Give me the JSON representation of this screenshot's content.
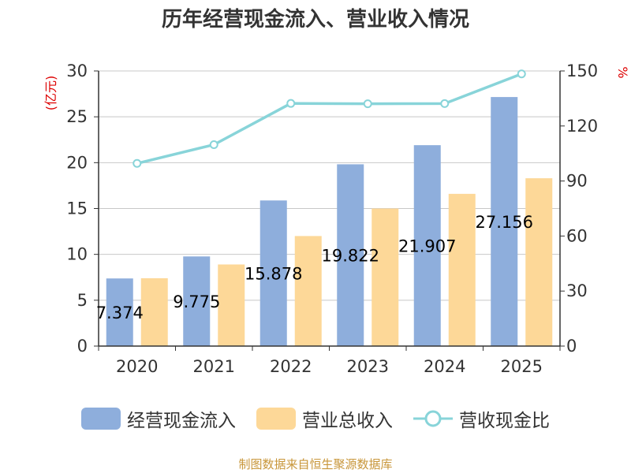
{
  "chart_data": {
    "type": "bar",
    "title": "历年经营现金流入、营业收入情况",
    "categories": [
      "2020",
      "2021",
      "2022",
      "2023",
      "2024",
      "2025"
    ],
    "series": [
      {
        "name": "经营现金流入",
        "kind": "bar",
        "axis": "left",
        "color": "#8eaedc",
        "values": [
          7.374,
          9.775,
          15.878,
          19.822,
          21.907,
          27.156
        ],
        "labels": [
          "7.374",
          "9.775",
          "15.878",
          "19.822",
          "21.907",
          "27.156"
        ]
      },
      {
        "name": "营业总收入",
        "kind": "bar",
        "axis": "left",
        "color": "#fdd898",
        "values": [
          7.4,
          8.9,
          12.0,
          15.0,
          16.6,
          18.3
        ]
      },
      {
        "name": "营收现金比",
        "kind": "line",
        "axis": "right",
        "color": "#88d4d9",
        "values": [
          99.6,
          109.8,
          132.3,
          132.1,
          132.2,
          148.4
        ]
      }
    ],
    "left_axis": {
      "unit": "(亿元)",
      "ylim": [
        0,
        30
      ],
      "ticks": [
        "0",
        "5",
        "10",
        "15",
        "20",
        "25",
        "30"
      ]
    },
    "right_axis": {
      "unit": "%",
      "ylim": [
        0,
        150
      ],
      "ticks": [
        "0",
        "30",
        "60",
        "90",
        "120",
        "150"
      ]
    },
    "grid": true,
    "legend_position": "bottom"
  },
  "legend": [
    {
      "label": "经营现金流入",
      "color": "#8eaedc"
    },
    {
      "label": "营业总收入",
      "color": "#fdd898"
    },
    {
      "label": "营收现金比",
      "color": "#88d4d9"
    }
  ],
  "source": "制图数据来自恒生聚源数据库"
}
